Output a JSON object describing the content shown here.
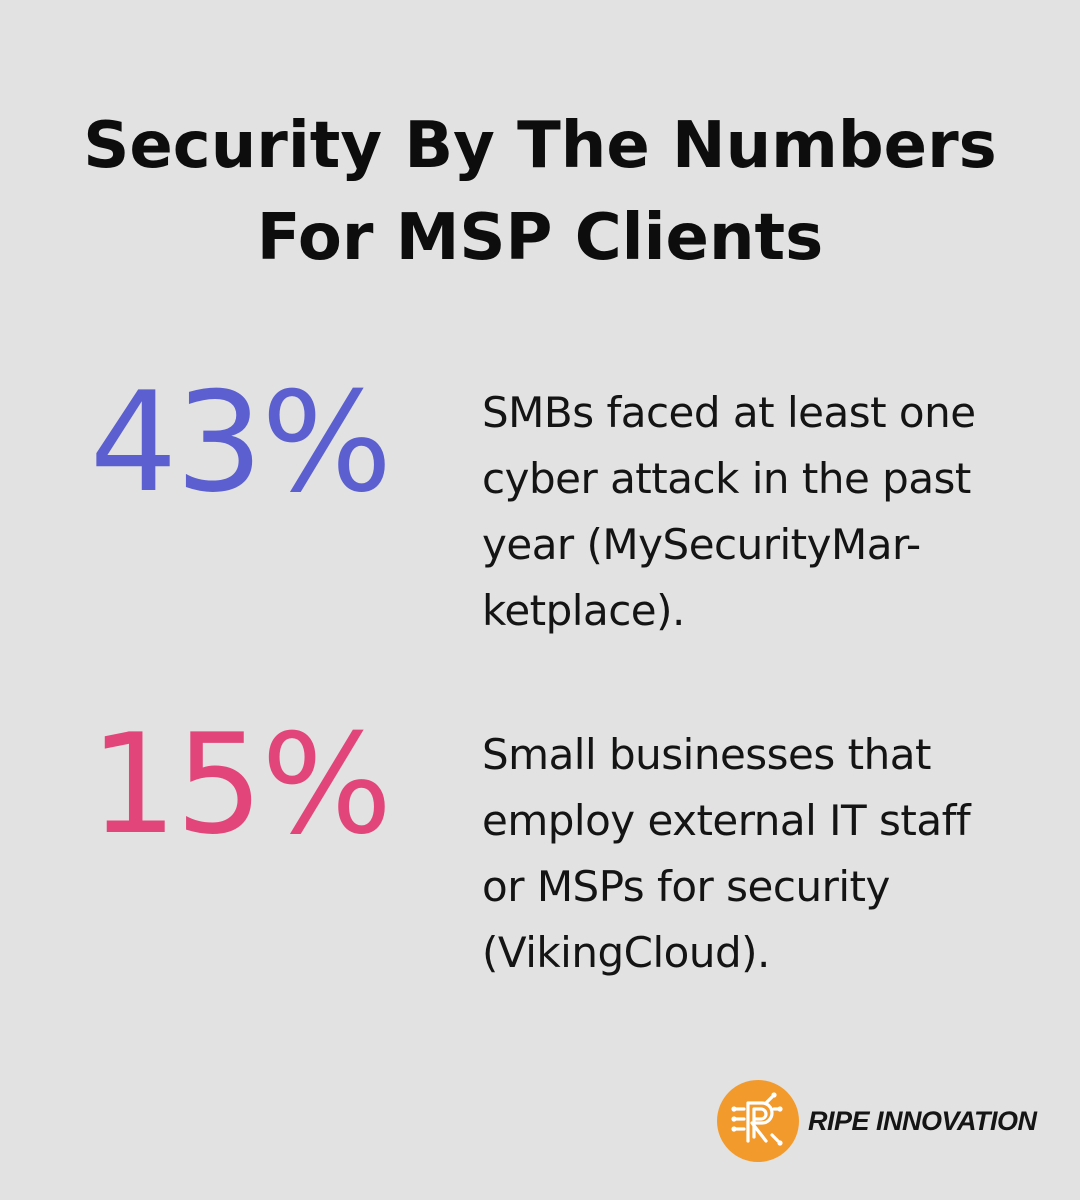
{
  "title": {
    "line1": "Security By The Numbers",
    "line2": "For MSP Clients"
  },
  "stats": [
    {
      "value": "43%",
      "color": "#5c5fcf",
      "description": "SMBs faced at least one cyber attack in the past year (MySecurityMar-ketplace).",
      "lines": [
        "SMBs faced at least one",
        "cyber attack in the past",
        "year (MySecurityMar-",
        "ketplace)."
      ]
    },
    {
      "value": "15%",
      "color": "#e2457a",
      "description": "Small businesses that employ external IT staff or MSPs for security (VikingCloud).",
      "lines": [
        "Small businesses that",
        "employ external IT staff",
        "or MSPs for security",
        "(VikingCloud)."
      ]
    }
  ],
  "logo": {
    "text": "RIPE INNOVATION",
    "icon": "ripe-innovation-logo-icon",
    "brand_color": "#f39a2c"
  },
  "colors": {
    "background": "#e1e2e1"
  }
}
